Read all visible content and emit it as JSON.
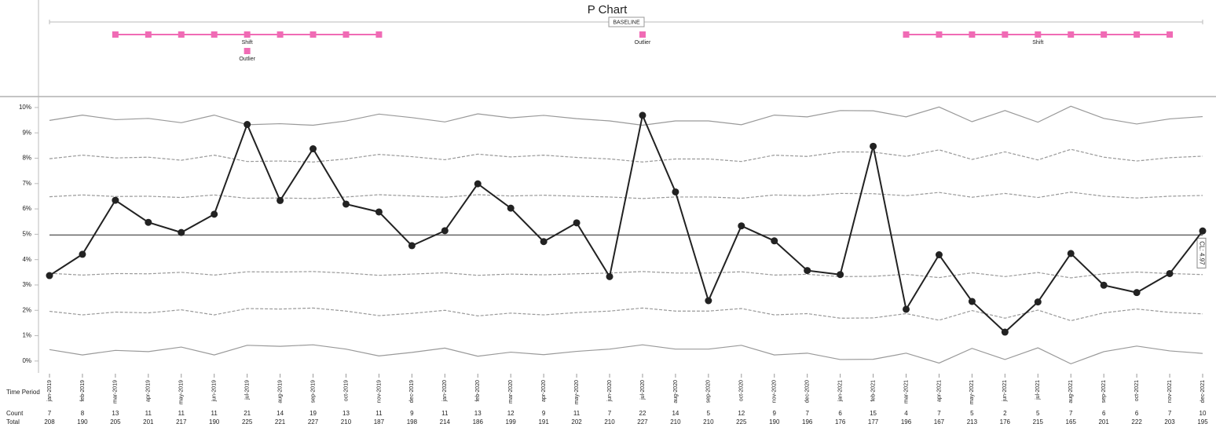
{
  "chart_data": {
    "type": "line",
    "title": "P Chart",
    "categories": [
      "jan-2019",
      "feb-2019",
      "mar-2019",
      "apr-2019",
      "may-2019",
      "jun-2019",
      "jul-2019",
      "aug-2019",
      "sep-2019",
      "oct-2019",
      "nov-2019",
      "dec-2019",
      "jan-2020",
      "feb-2020",
      "mar-2020",
      "apr-2020",
      "may-2020",
      "jun-2020",
      "jul-2020",
      "aug-2020",
      "sep-2020",
      "oct-2020",
      "nov-2020",
      "dec-2020",
      "jan-2021",
      "feb-2021",
      "mar-2021",
      "apr-2021",
      "may-2021",
      "jun-2021",
      "jul-2021",
      "aug-2021",
      "sep-2021",
      "oct-2021",
      "nov-2021",
      "dec-2021"
    ],
    "x_label": "Time Period",
    "series": [
      {
        "color": "#222222",
        "values": [
          3.37,
          4.21,
          6.34,
          5.47,
          5.07,
          5.79,
          9.33,
          6.33,
          8.37,
          6.19,
          5.88,
          4.55,
          5.14,
          6.99,
          6.03,
          4.71,
          5.45,
          3.33,
          9.69,
          6.67,
          2.38,
          5.33,
          4.74,
          3.57,
          3.41,
          8.47,
          2.04,
          4.19,
          2.35,
          1.14,
          2.33,
          4.24,
          2.99,
          2.7,
          3.45,
          5.13
        ]
      }
    ],
    "limits": [
      {
        "color": "#999999",
        "dash": false,
        "values": [
          9.49,
          9.7,
          9.52,
          9.57,
          9.4,
          9.7,
          9.32,
          9.36,
          9.3,
          9.47,
          9.74,
          9.6,
          9.43,
          9.75,
          9.59,
          9.69,
          9.56,
          9.47,
          9.3,
          9.47,
          9.47,
          9.32,
          9.7,
          9.63,
          9.88,
          9.87,
          9.63,
          10.02,
          9.44,
          9.88,
          9.42,
          10.05,
          9.57,
          9.35,
          9.55,
          9.64
        ]
      },
      {
        "color": "#999999",
        "dash": true,
        "values": [
          7.98,
          8.12,
          8.01,
          8.04,
          7.92,
          8.12,
          7.87,
          7.89,
          7.85,
          7.97,
          8.15,
          8.06,
          7.94,
          8.16,
          8.05,
          8.12,
          8.03,
          7.97,
          7.85,
          7.97,
          7.97,
          7.87,
          8.12,
          8.07,
          8.25,
          8.24,
          8.07,
          8.33,
          7.95,
          8.25,
          7.93,
          8.35,
          8.04,
          7.89,
          8.02,
          8.08
        ]
      },
      {
        "color": "#999999",
        "dash": true,
        "values": [
          6.48,
          6.55,
          6.49,
          6.5,
          6.45,
          6.55,
          6.42,
          6.43,
          6.41,
          6.47,
          6.56,
          6.51,
          6.46,
          6.56,
          6.51,
          6.54,
          6.5,
          6.47,
          6.41,
          6.47,
          6.47,
          6.42,
          6.55,
          6.52,
          6.61,
          6.6,
          6.52,
          6.65,
          6.46,
          6.61,
          6.45,
          6.66,
          6.5,
          6.43,
          6.5,
          6.53
        ]
      },
      {
        "color": "#999999",
        "dash": true,
        "values": [
          3.46,
          3.39,
          3.45,
          3.44,
          3.5,
          3.39,
          3.52,
          3.51,
          3.53,
          3.47,
          3.38,
          3.43,
          3.48,
          3.38,
          3.43,
          3.4,
          3.44,
          3.47,
          3.53,
          3.47,
          3.47,
          3.52,
          3.39,
          3.42,
          3.33,
          3.34,
          3.42,
          3.29,
          3.48,
          3.33,
          3.49,
          3.28,
          3.44,
          3.51,
          3.45,
          3.41
        ]
      },
      {
        "color": "#999999",
        "dash": true,
        "values": [
          1.96,
          1.82,
          1.93,
          1.9,
          2.02,
          1.82,
          2.07,
          2.05,
          2.09,
          1.97,
          1.79,
          1.88,
          2.0,
          1.78,
          1.89,
          1.82,
          1.91,
          1.97,
          2.09,
          1.97,
          1.97,
          2.07,
          1.82,
          1.87,
          1.69,
          1.7,
          1.87,
          1.61,
          1.99,
          1.69,
          2.01,
          1.59,
          1.9,
          2.05,
          1.92,
          1.86
        ]
      },
      {
        "color": "#999999",
        "dash": false,
        "values": [
          0.45,
          0.24,
          0.42,
          0.37,
          0.55,
          0.24,
          0.62,
          0.58,
          0.64,
          0.47,
          0.2,
          0.34,
          0.51,
          0.19,
          0.35,
          0.25,
          0.38,
          0.47,
          0.64,
          0.47,
          0.47,
          0.62,
          0.24,
          0.31,
          0.06,
          0.07,
          0.31,
          -0.08,
          0.5,
          0.06,
          0.52,
          -0.11,
          0.37,
          0.59,
          0.4,
          0.3
        ]
      }
    ],
    "center_line": {
      "value": 4.97,
      "label": "CL: 4.97",
      "color": "#666666"
    },
    "ylim": [
      -0.5,
      10.4
    ],
    "yticks": [
      {
        "value": 0,
        "label": "0%"
      },
      {
        "value": 1,
        "label": "1%"
      },
      {
        "value": 2,
        "label": "2%"
      },
      {
        "value": 3,
        "label": "3%"
      },
      {
        "value": 4,
        "label": "4%"
      },
      {
        "value": 5,
        "label": "5%"
      },
      {
        "value": 6,
        "label": "6%"
      },
      {
        "value": 7,
        "label": "7%"
      },
      {
        "value": 8,
        "label": "8%"
      },
      {
        "value": 9,
        "label": "9%"
      },
      {
        "value": 10,
        "label": "10%"
      }
    ],
    "grid": false,
    "table": {
      "count_label": "Count",
      "total_label": "Total",
      "counts": [
        7,
        8,
        13,
        11,
        11,
        11,
        21,
        14,
        19,
        13,
        11,
        9,
        11,
        13,
        12,
        9,
        11,
        7,
        22,
        14,
        5,
        12,
        9,
        7,
        6,
        15,
        4,
        7,
        5,
        2,
        5,
        7,
        6,
        6,
        7,
        10
      ],
      "totals": [
        208,
        190,
        205,
        201,
        217,
        190,
        225,
        221,
        227,
        210,
        187,
        198,
        214,
        186,
        199,
        191,
        202,
        210,
        227,
        210,
        210,
        225,
        190,
        196,
        176,
        177,
        196,
        167,
        213,
        176,
        215,
        165,
        201,
        222,
        203,
        195
      ]
    },
    "baseline": {
      "label": "BASELINE"
    },
    "annotation_color": "#f06bb5",
    "annotations": [
      {
        "type": "shift",
        "label": "Shift",
        "from": 2,
        "to": 10
      },
      {
        "type": "outlier",
        "label": "Outlier",
        "at": 6
      },
      {
        "type": "outlier",
        "label": "Outlier",
        "at": 18
      },
      {
        "type": "shift",
        "label": "Shift",
        "from": 26,
        "to": 34
      }
    ]
  }
}
